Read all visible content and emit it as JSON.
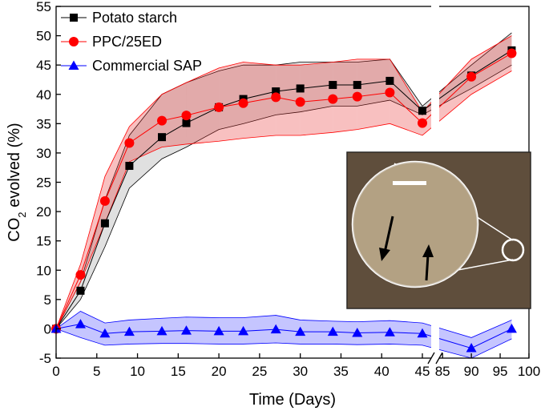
{
  "chart_data": {
    "type": "line",
    "x_label": "Time (Days)",
    "y_label": [
      "CO",
      "2",
      " evolved (%)"
    ],
    "xlim": [
      0,
      100
    ],
    "x_break": [
      46,
      84
    ],
    "xticks": [
      0,
      5,
      10,
      15,
      20,
      25,
      30,
      35,
      40,
      45,
      85,
      90,
      95,
      100
    ],
    "ylim": [
      -5,
      55
    ],
    "yticks": [
      -5,
      0,
      5,
      10,
      15,
      20,
      25,
      30,
      35,
      40,
      45,
      50,
      55
    ],
    "legend": "upper left",
    "x": [
      0,
      3,
      6,
      9,
      13,
      16,
      20,
      23,
      27,
      30,
      34,
      37,
      41,
      45,
      90,
      97
    ],
    "series": [
      {
        "name": "Potato starch",
        "color": "#000000",
        "band_color": "#999999",
        "marker": "square",
        "values": [
          0,
          6.5,
          18,
          27.8,
          32.7,
          35.1,
          37.8,
          39.2,
          40.5,
          41,
          41.6,
          41.6,
          42.3,
          37.2,
          43.2,
          47.5
        ],
        "upper": [
          0,
          8,
          22,
          33,
          40,
          42,
          44,
          45,
          45,
          45.5,
          45.5,
          45.5,
          46,
          38,
          45,
          50.5
        ],
        "lower": [
          0,
          5,
          14,
          24,
          29,
          31,
          34,
          35,
          36.5,
          37,
          38,
          38,
          39,
          36.5,
          41,
          45
        ]
      },
      {
        "name": "PPC/25ED",
        "color": "#ff0000",
        "band_color": "#e83030",
        "marker": "circle",
        "values": [
          0,
          9.2,
          21.8,
          31.7,
          35.5,
          36.4,
          37.8,
          38.5,
          39.5,
          38.7,
          39.2,
          39.6,
          40.3,
          35.1,
          43,
          47
        ],
        "upper": [
          0,
          11,
          26,
          34.5,
          40,
          42,
          44.5,
          45.5,
          45,
          45,
          45.5,
          46,
          46,
          37,
          46,
          50
        ],
        "lower": [
          0,
          8,
          18,
          28.5,
          31,
          31.5,
          32,
          32.5,
          33,
          33,
          33.5,
          34,
          35,
          33,
          40,
          44
        ]
      },
      {
        "name": "Commercial SAP",
        "color": "#0000ff",
        "band_color": "#4040ff",
        "marker": "triangle",
        "values": [
          0,
          0.8,
          -0.8,
          -0.5,
          -0.4,
          -0.3,
          -0.4,
          -0.4,
          -0.1,
          -0.5,
          -0.5,
          -0.7,
          -0.6,
          -0.8,
          -3.3,
          0
        ],
        "upper": [
          0,
          3,
          1,
          1.5,
          1.8,
          2,
          1.9,
          1.9,
          2.3,
          1.5,
          1.3,
          1.2,
          1.4,
          1,
          -1.5,
          1.5
        ],
        "lower": [
          0,
          -1.5,
          -2.8,
          -2.6,
          -2.5,
          -2.5,
          -2.6,
          -2.6,
          -2.4,
          -2.6,
          -2.6,
          -2.7,
          -2.6,
          -2.8,
          -5,
          -1.7
        ]
      }
    ]
  }
}
